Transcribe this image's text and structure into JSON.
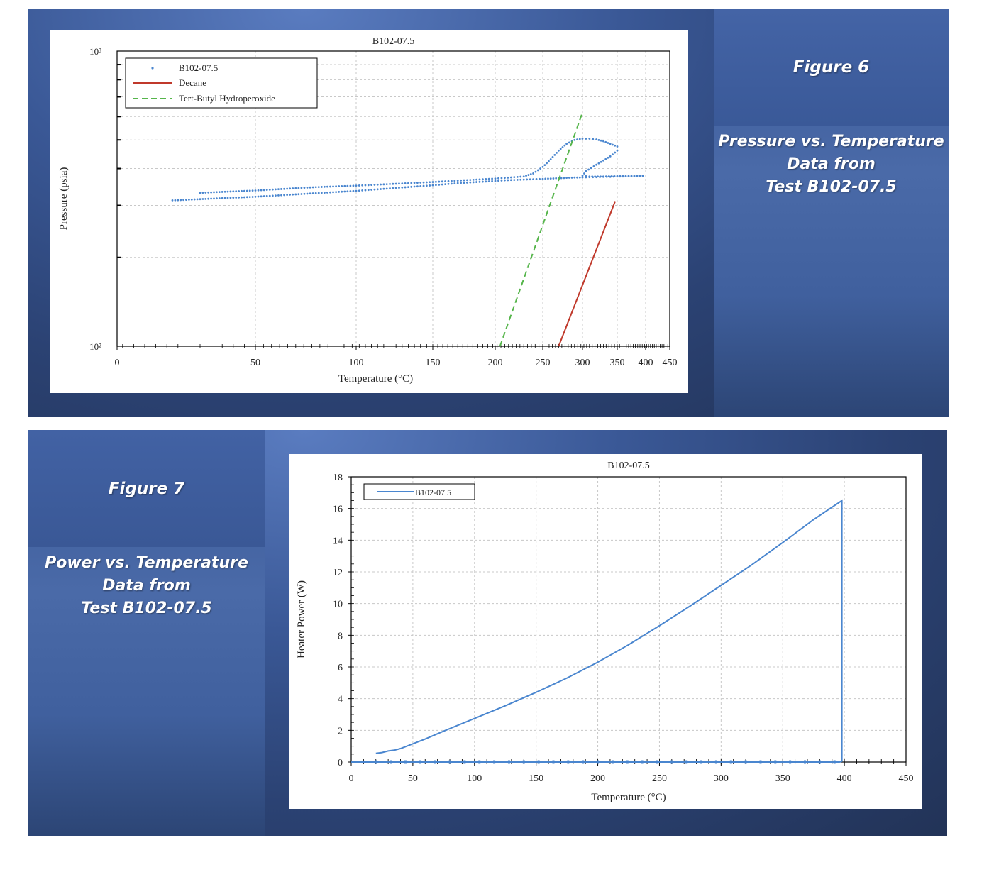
{
  "figure6": {
    "title": "Figure 6",
    "caption": [
      "Pressure  vs. Temperature",
      "Data from",
      "Test B102-07.5"
    ]
  },
  "figure7": {
    "title": "Figure 7",
    "caption": [
      "Power  vs. Temperature",
      "Data from",
      "Test B102-07.5"
    ]
  },
  "colors": {
    "data_series": "#4a86cf",
    "decane": "#c0392b",
    "tbhp": "#55b54a",
    "panel_dark": "#223357",
    "panel_light": "#5a7cc0"
  },
  "chart_data": [
    {
      "type": "scatter",
      "title": "B102-07.5",
      "xlabel": "Temperature (°C)",
      "ylabel": "Pressure (psia)",
      "x_ticks": [
        "0",
        "50",
        "100",
        "150",
        "200",
        "250",
        "300",
        "350",
        "400",
        "450"
      ],
      "y_tick_labels": [
        "10²",
        "10³"
      ],
      "y_scale": "log",
      "ylim": [
        100,
        1000
      ],
      "grid": true,
      "legend": "top-left",
      "legend_entries": [
        "B102-07.5",
        "Decane",
        "Tert-Butyl Hydroperoxide"
      ],
      "series": [
        {
          "name": "B102-07.5",
          "style": "markers",
          "x": [
            20,
            30,
            40,
            50,
            60,
            70,
            80,
            90,
            100,
            110,
            120,
            130,
            140,
            150,
            160,
            170,
            180,
            190,
            200,
            210,
            220,
            230,
            240,
            250,
            260,
            270,
            280,
            290,
            300,
            310,
            320,
            330,
            340,
            350,
            360,
            370,
            380,
            390,
            400
          ],
          "y": [
            312,
            315,
            318,
            321,
            324,
            327,
            330,
            333,
            336,
            339,
            342,
            345,
            348,
            351,
            354,
            357,
            359,
            361,
            363,
            365,
            366,
            367,
            368,
            369,
            370,
            371,
            372,
            373,
            373,
            374,
            374,
            375,
            375,
            376,
            376,
            377,
            377,
            378,
            378
          ]
        },
        {
          "name": "B102-07.5",
          "style": "markers",
          "x": [
            30,
            40,
            50,
            60,
            70,
            80,
            90,
            100,
            110,
            120,
            130,
            140,
            150,
            160,
            170,
            180,
            190,
            200,
            210,
            220,
            230,
            240,
            250,
            260,
            270,
            280,
            290,
            300,
            310,
            320,
            330,
            340,
            350,
            350,
            340,
            320,
            305,
            300,
            310,
            330,
            350,
            370,
            390,
            400
          ],
          "y": [
            331,
            334,
            337,
            340,
            343,
            346,
            348,
            350,
            352,
            354,
            356,
            358,
            360,
            362,
            364,
            366,
            368,
            370,
            372,
            374,
            376,
            385,
            405,
            430,
            460,
            485,
            500,
            505,
            505,
            502,
            495,
            485,
            475,
            460,
            440,
            412,
            392,
            378,
            376,
            376,
            377,
            377,
            378,
            378
          ]
        },
        {
          "name": "Decane",
          "style": "line",
          "x": [
            270,
            347
          ],
          "y": [
            100,
            310
          ]
        },
        {
          "name": "Tert-Butyl Hydroperoxide",
          "style": "dashed",
          "x": [
            205,
            300
          ],
          "y": [
            100,
            620
          ]
        }
      ]
    },
    {
      "type": "line",
      "title": "B102-07.5",
      "xlabel": "Temperature (°C)",
      "ylabel": "Heater Power (W)",
      "x_ticks": [
        "0",
        "50",
        "100",
        "150",
        "200",
        "250",
        "300",
        "350",
        "400",
        "450"
      ],
      "y_ticks": [
        "0",
        "2",
        "4",
        "6",
        "8",
        "10",
        "12",
        "14",
        "16",
        "18"
      ],
      "xlim": [
        0,
        450
      ],
      "ylim": [
        0,
        18
      ],
      "grid": true,
      "legend": "top-left",
      "series": [
        {
          "name": "B102-07.5",
          "x": [
            20,
            25,
            30,
            35,
            40,
            50,
            60,
            75,
            100,
            125,
            150,
            175,
            200,
            225,
            250,
            275,
            300,
            325,
            350,
            375,
            398,
            398,
            396,
            300,
            200,
            100,
            0
          ],
          "y": [
            0.55,
            0.6,
            0.7,
            0.75,
            0.85,
            1.15,
            1.45,
            1.95,
            2.75,
            3.55,
            4.4,
            5.3,
            6.3,
            7.4,
            8.6,
            9.85,
            11.15,
            12.45,
            13.85,
            15.3,
            16.5,
            0.05,
            0,
            0,
            0,
            0,
            0
          ]
        }
      ]
    }
  ]
}
